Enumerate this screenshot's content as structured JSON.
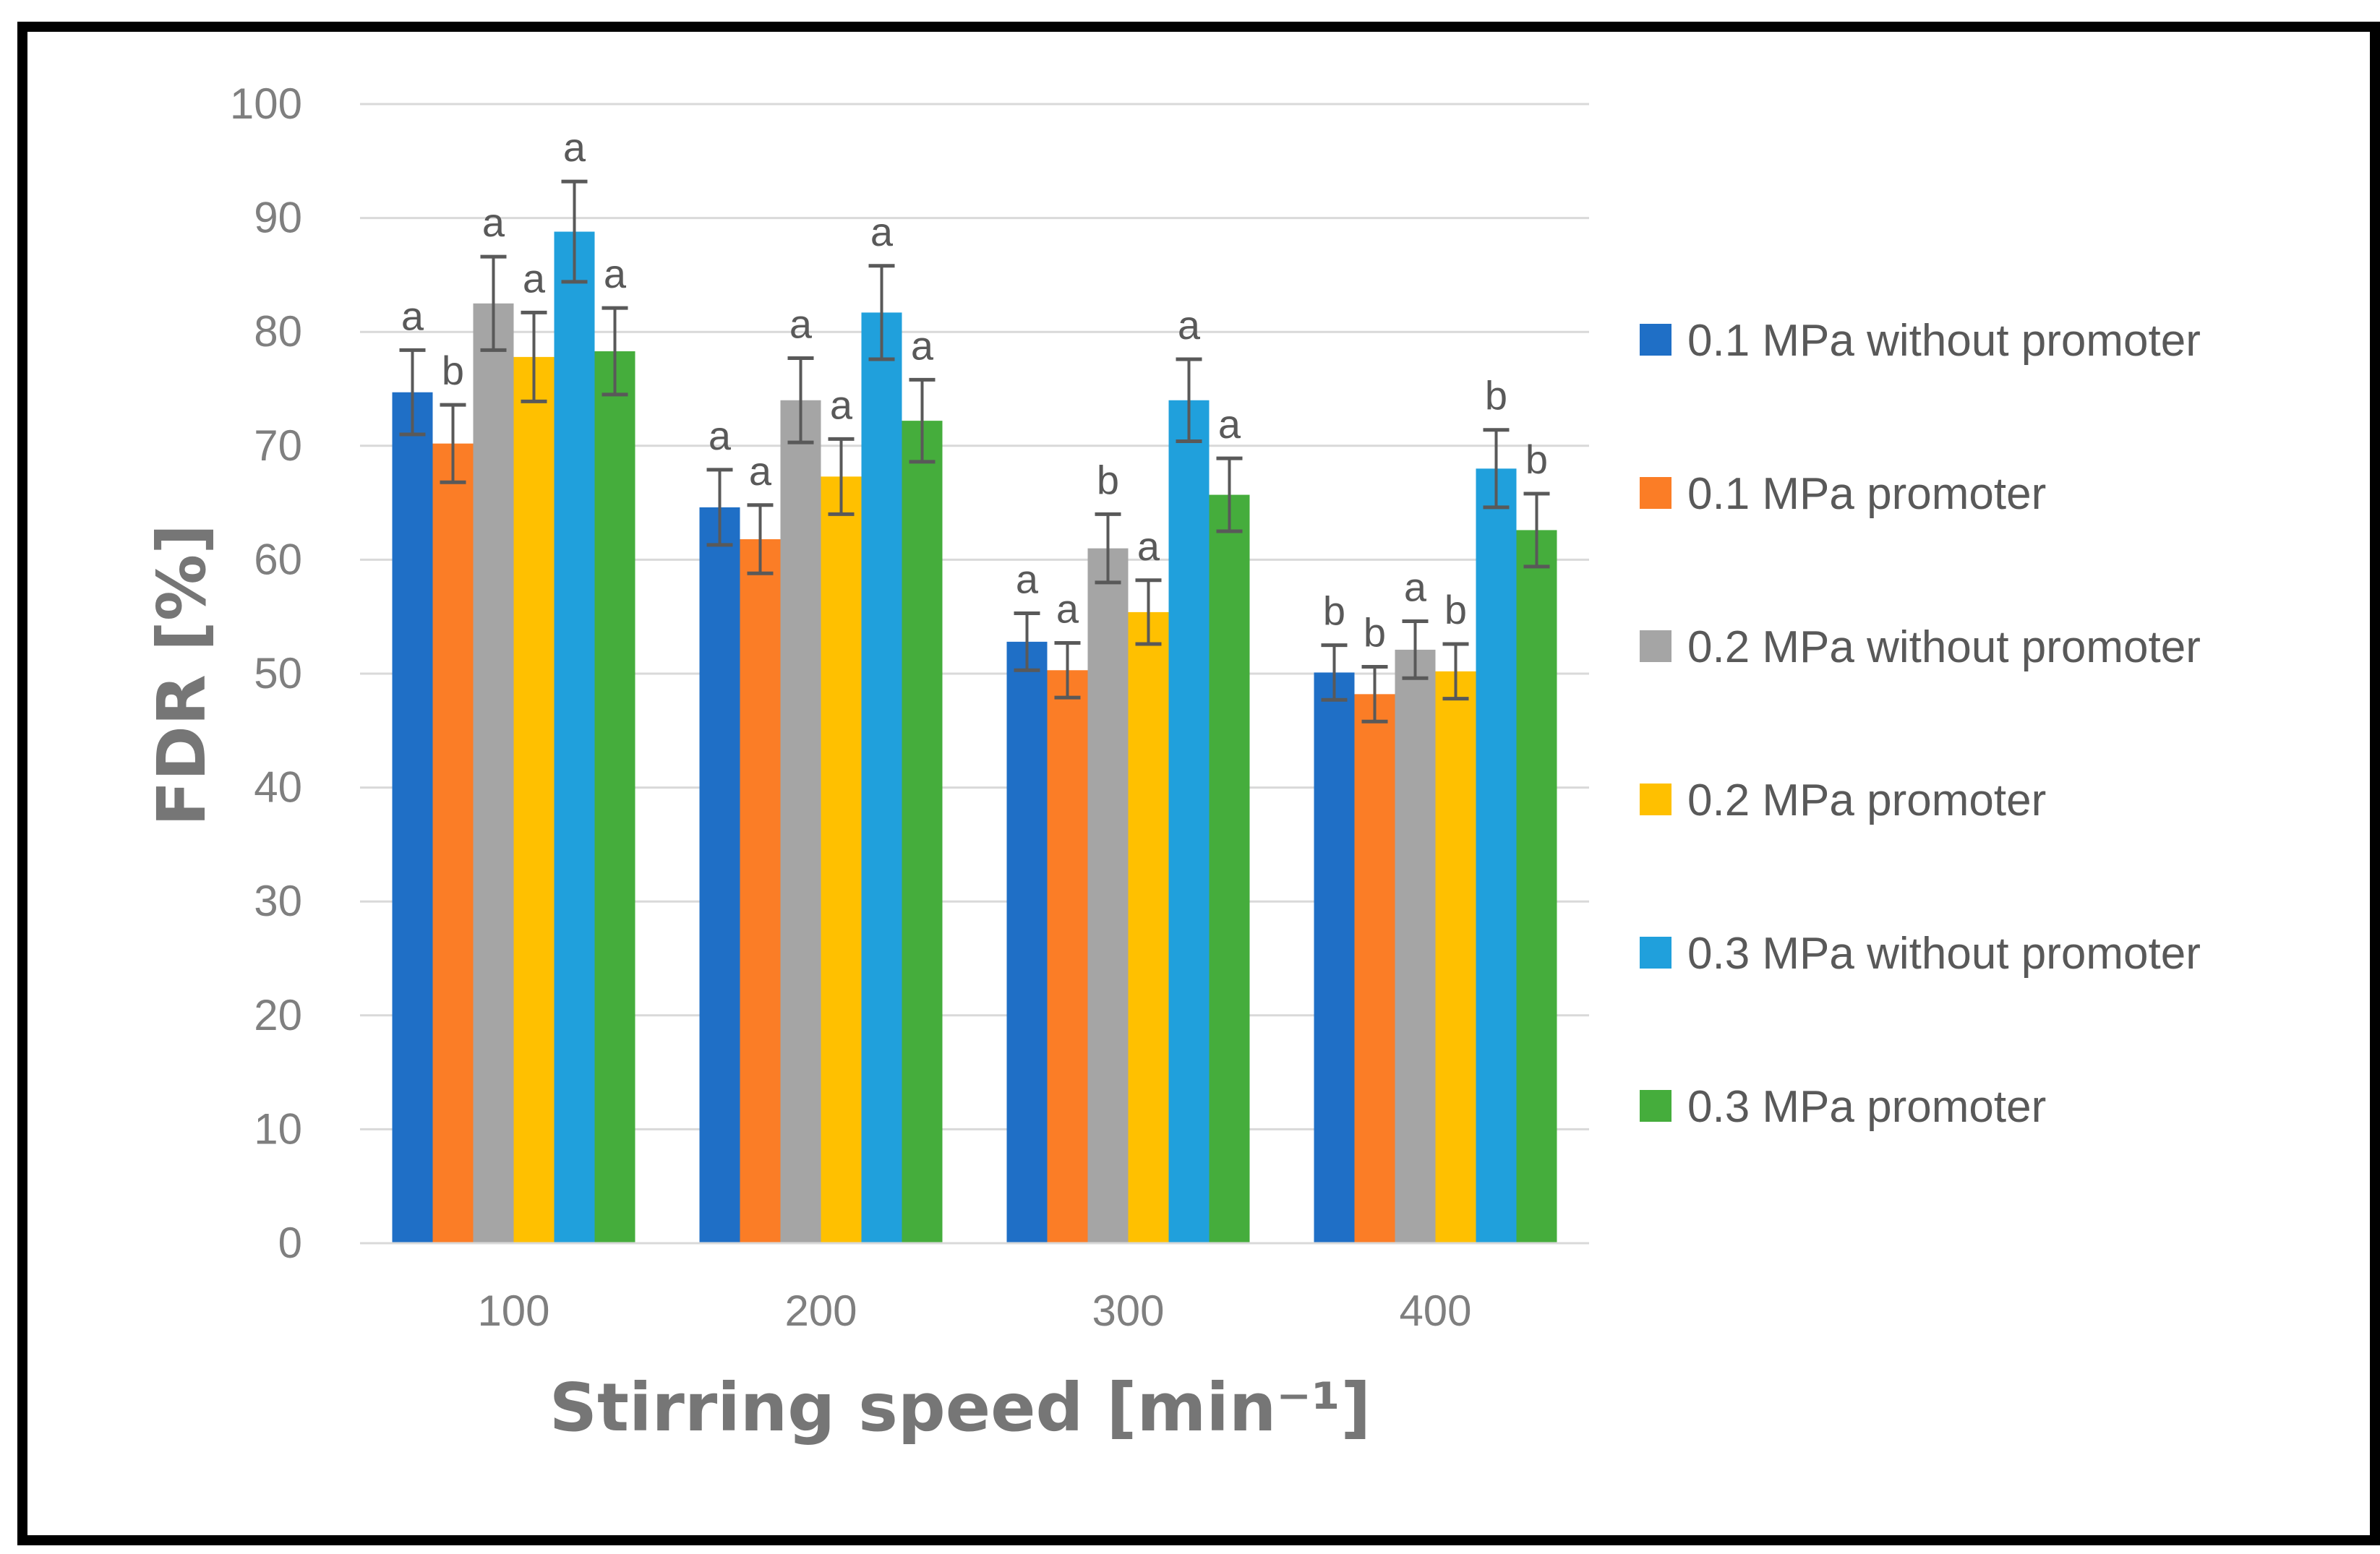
{
  "chart_data": {
    "type": "bar",
    "title": "",
    "xlabel": "Stirring speed [min⁻¹]",
    "ylabel": "FDR [%]",
    "ylim": [
      0,
      100
    ],
    "yticks": [
      "0",
      "10",
      "20",
      "30",
      "40",
      "50",
      "60",
      "70",
      "80",
      "90",
      "100"
    ],
    "grid": true,
    "legend_position": "right",
    "categories": [
      "100",
      "200",
      "300",
      "400"
    ],
    "series": [
      {
        "name": "0.1 MPa without promoter",
        "color": "#1f6fc6",
        "values": [
          74.7,
          64.6,
          52.8,
          50.1
        ],
        "errors": [
          3.7,
          3.3,
          2.5,
          2.4
        ],
        "labels": [
          "a",
          "a",
          "a",
          "b"
        ]
      },
      {
        "name": "0.1 MPa promoter",
        "color": "#fb7d26",
        "values": [
          70.2,
          61.8,
          50.3,
          48.2
        ],
        "errors": [
          3.4,
          3.0,
          2.4,
          2.4
        ],
        "labels": [
          "b",
          "a",
          "a",
          "b"
        ]
      },
      {
        "name": "0.2 MPa without promoter",
        "color": "#a5a5a5",
        "values": [
          82.5,
          74.0,
          61.0,
          52.1
        ],
        "errors": [
          4.1,
          3.7,
          3.0,
          2.5
        ],
        "labels": [
          "a",
          "a",
          "b",
          "a"
        ]
      },
      {
        "name": "0.2 MPa promoter",
        "color": "#ffc000",
        "values": [
          77.8,
          67.3,
          55.4,
          50.2
        ],
        "errors": [
          3.9,
          3.3,
          2.8,
          2.4
        ],
        "labels": [
          "a",
          "a",
          "a",
          "b"
        ]
      },
      {
        "name": "0.3 MPa without promoter",
        "color": "#20a0dc",
        "values": [
          88.8,
          81.7,
          74.0,
          68.0
        ],
        "errors": [
          4.4,
          4.1,
          3.6,
          3.4
        ],
        "labels": [
          "a",
          "a",
          "a",
          "b"
        ]
      },
      {
        "name": "0.3 MPa promoter",
        "color": "#45ad3c",
        "values": [
          78.3,
          72.2,
          65.7,
          62.6
        ],
        "errors": [
          3.8,
          3.6,
          3.2,
          3.2
        ],
        "labels": [
          "a",
          "a",
          "a",
          "b"
        ]
      }
    ]
  }
}
